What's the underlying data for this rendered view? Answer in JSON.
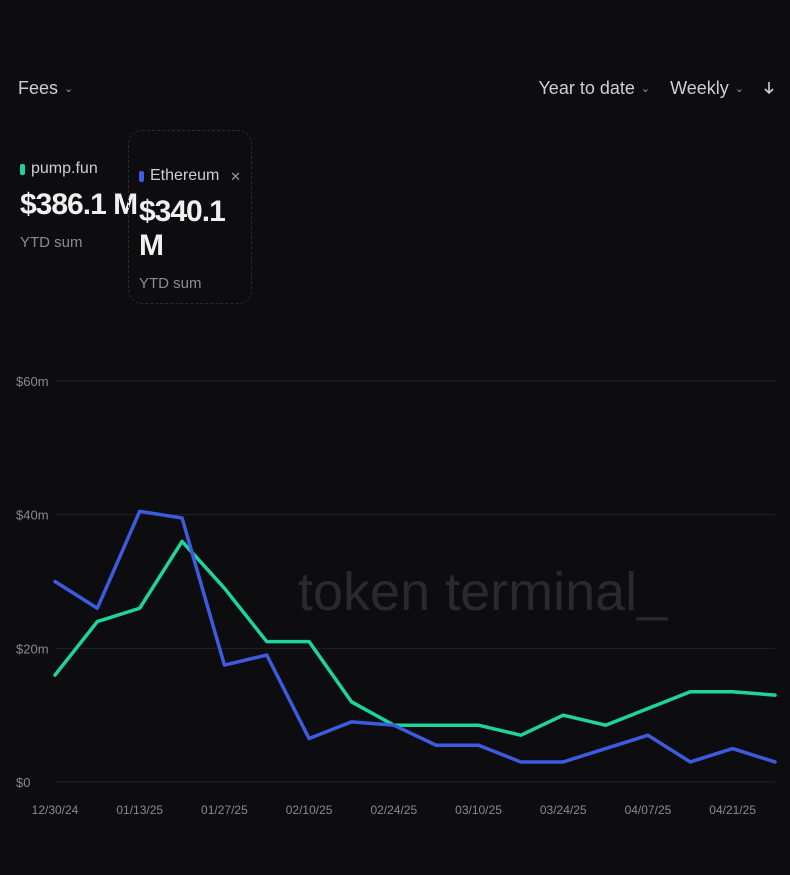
{
  "header": {
    "metric_label": "Fees",
    "range_label": "Year to date",
    "granularity_label": "Weekly"
  },
  "legend": [
    {
      "name": "pump.fun",
      "value": "$386.1 M",
      "period": "YTD sum",
      "color": "#1fd49a"
    },
    {
      "name": "Ethereum",
      "value": "$340.1 M",
      "period": "YTD sum",
      "color": "#3d5be0"
    }
  ],
  "watermark": "token terminal_",
  "chart_data": {
    "type": "line",
    "title": "",
    "xlabel": "",
    "ylabel": "",
    "ylim": [
      0,
      60
    ],
    "y_ticks": [
      0,
      20,
      40,
      60
    ],
    "y_tick_labels": [
      "$0",
      "$20m",
      "$40m",
      "$60m"
    ],
    "x_tick_labels": [
      "12/30/24",
      "01/13/25",
      "01/27/25",
      "02/10/25",
      "02/24/25",
      "03/10/25",
      "03/24/25",
      "04/07/25",
      "04/21/25"
    ],
    "categories": [
      "12/30/24",
      "01/06/25",
      "01/13/25",
      "01/20/25",
      "01/27/25",
      "02/03/25",
      "02/10/25",
      "02/17/25",
      "02/24/25",
      "03/03/25",
      "03/10/25",
      "03/17/25",
      "03/24/25",
      "03/31/25",
      "04/07/25",
      "04/14/25",
      "04/21/25",
      "04/28/25"
    ],
    "grid": true,
    "series": [
      {
        "name": "pump.fun",
        "color": "#1fd49a",
        "values": [
          16,
          24,
          26,
          36,
          29,
          21,
          21,
          12,
          8.5,
          8.5,
          8.5,
          7,
          10,
          8.5,
          11,
          13.5,
          13.5,
          13
        ]
      },
      {
        "name": "Ethereum",
        "color": "#3d5be0",
        "values": [
          30,
          26,
          40.5,
          39.5,
          17.5,
          19,
          6.5,
          9,
          8.5,
          5.5,
          5.5,
          3,
          3,
          5,
          7,
          3,
          5,
          3
        ]
      }
    ]
  }
}
